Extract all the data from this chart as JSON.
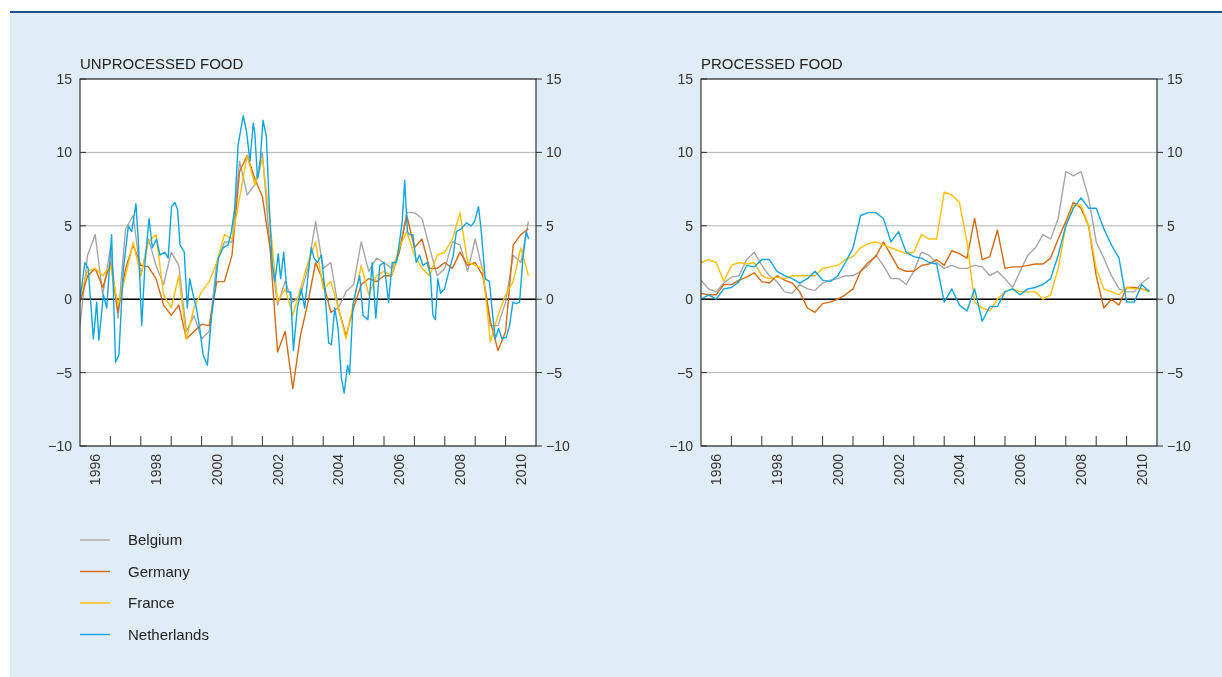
{
  "chart_data": [
    {
      "type": "line",
      "title": "UNPROCESSED FOOD",
      "xlim": [
        1996,
        2011
      ],
      "ylim": [
        -10,
        15
      ],
      "yticks": [
        -10,
        -5,
        0,
        5,
        10,
        15
      ],
      "y2lim": [
        -10,
        15
      ],
      "y2ticks": [
        -10,
        -5,
        0,
        5,
        10,
        15
      ],
      "xticks": [
        {
          "value": 1996.5,
          "label": "1996"
        },
        {
          "value": 1998.5,
          "label": "1998"
        },
        {
          "value": 2000.5,
          "label": "2000"
        },
        {
          "value": 2002.5,
          "label": "2002"
        },
        {
          "value": 2004.5,
          "label": "2004"
        },
        {
          "value": 2006.5,
          "label": "2006"
        },
        {
          "value": 2008.5,
          "label": "2008"
        },
        {
          "value": 2010.5,
          "label": "2010"
        },
        {
          "value": 1997,
          "label": null
        },
        {
          "value": 1998,
          "label": null
        },
        {
          "value": 1999,
          "label": null
        },
        {
          "value": 2000,
          "label": null
        },
        {
          "value": 2001,
          "label": null
        },
        {
          "value": 2002,
          "label": null
        },
        {
          "value": 2003,
          "label": null
        },
        {
          "value": 2004,
          "label": null
        },
        {
          "value": 2005,
          "label": null
        },
        {
          "value": 2006,
          "label": null
        },
        {
          "value": 2007,
          "label": null
        },
        {
          "value": 2008,
          "label": null
        },
        {
          "value": 2009,
          "label": null
        },
        {
          "value": 2010,
          "label": null
        }
      ],
      "grid": "y",
      "legend": "bottom",
      "line_style": "solid",
      "ref_lines": [
        {
          "axis": "y",
          "value": 0,
          "color": "#000000"
        }
      ],
      "x": [
        1996,
        1996.25,
        1996.5,
        1996.75,
        1997,
        1997.25,
        1997.5,
        1997.75,
        1998,
        1998.25,
        1998.5,
        1998.75,
        1999,
        1999.25,
        1999.5,
        1999.75,
        2000,
        2000.25,
        2000.5,
        2000.75,
        2001,
        2001.25,
        2001.5,
        2001.75,
        2002,
        2002.25,
        2002.5,
        2002.75,
        2003,
        2003.25,
        2003.5,
        2003.75,
        2004,
        2004.25,
        2004.5,
        2004.75,
        2005,
        2005.25,
        2005.5,
        2005.75,
        2006,
        2006.25,
        2006.5,
        2006.75,
        2007,
        2007.25,
        2007.5,
        2007.75,
        2008,
        2008.25,
        2008.5,
        2008.75,
        2009,
        2009.25,
        2009.5,
        2009.75,
        2010,
        2010.25,
        2010.5,
        2010.75
      ],
      "series": [
        {
          "name": "Belgium",
          "color": "#a6a6a6",
          "values": [
            -1.8,
            3.0,
            4.4,
            0.3,
            3.5,
            -1.3,
            4.8,
            5.7,
            1.6,
            4.1,
            2.3,
            1.0,
            3.2,
            2.3,
            -2.2,
            -1.1,
            -2.7,
            -2.2,
            2.5,
            3.9,
            3.9,
            9.4,
            7.1,
            7.8,
            10.0,
            3.5,
            -0.4,
            1.2,
            -0.2,
            0.3,
            2.1,
            5.3,
            2.1,
            2.5,
            -0.6,
            0.5,
            1.0,
            3.9,
            1.9,
            2.8,
            2.5,
            2.1,
            3.2,
            5.9,
            5.9,
            5.5,
            3.5,
            1.6,
            2.1,
            3.9,
            3.7,
            1.9,
            4.1,
            1.9,
            -1.8,
            -1.8,
            -0.2,
            3.0,
            2.5,
            5.3
          ]
        },
        {
          "name": "Germany",
          "color": "#d46a12",
          "values": [
            -0.2,
            1.6,
            2.1,
            0.8,
            2.5,
            -0.9,
            2.1,
            3.7,
            2.3,
            2.2,
            1.4,
            -0.4,
            -1.1,
            -0.4,
            -2.7,
            -2.2,
            -1.7,
            -1.8,
            1.2,
            1.2,
            3.0,
            8.7,
            9.8,
            8.2,
            7.0,
            3.5,
            -3.6,
            -2.2,
            -6.1,
            -2.5,
            -0.2,
            2.5,
            1.2,
            -0.9,
            -0.6,
            -2.5,
            -0.6,
            1.0,
            1.4,
            1.2,
            1.6,
            1.6,
            3.2,
            5.7,
            3.5,
            4.1,
            2.1,
            2.1,
            2.5,
            2.1,
            3.2,
            2.3,
            2.5,
            1.6,
            -1.5,
            -3.5,
            -2.2,
            3.7,
            4.4,
            4.8
          ]
        },
        {
          "name": "France",
          "color": "#ffc000",
          "values": [
            0.3,
            1.9,
            2.1,
            1.6,
            2.3,
            -0.4,
            1.6,
            3.9,
            1.6,
            3.9,
            4.4,
            0.3,
            -0.6,
            1.6,
            -2.7,
            -0.6,
            0.5,
            1.2,
            2.5,
            4.4,
            4.1,
            6.9,
            9.8,
            7.8,
            9.6,
            5.3,
            -0.2,
            0.7,
            -1.1,
            0.7,
            2.5,
            3.9,
            0.7,
            1.2,
            -0.6,
            -2.7,
            -0.2,
            2.3,
            0.3,
            1.6,
            1.9,
            1.6,
            3.5,
            4.6,
            3.0,
            2.1,
            1.6,
            3.0,
            3.2,
            4.1,
            5.9,
            2.5,
            2.3,
            2.1,
            -2.9,
            -1.1,
            0.3,
            1.2,
            3.5,
            1.6
          ]
        },
        {
          "name": "Netherlands",
          "color": "#0ea5e0",
          "x": [
            1996.0,
            1996.16,
            1996.27,
            1996.44,
            1996.55,
            1996.62,
            1996.77,
            1996.88,
            1997.04,
            1997.17,
            1997.28,
            1997.42,
            1997.59,
            1997.7,
            1997.84,
            1997.92,
            1998.03,
            1998.14,
            1998.27,
            1998.38,
            1998.52,
            1998.63,
            1998.79,
            1998.9,
            1999.01,
            1999.12,
            1999.21,
            1999.29,
            1999.43,
            1999.53,
            1999.61,
            1999.72,
            1999.83,
            1999.94,
            2000.05,
            2000.19,
            2000.33,
            2000.44,
            2000.55,
            2000.71,
            2000.87,
            2000.98,
            2001.09,
            2001.2,
            2001.37,
            2001.48,
            2001.59,
            2001.7,
            2001.75,
            2001.84,
            2001.91,
            2002.02,
            2002.13,
            2002.24,
            2002.32,
            2002.41,
            2002.52,
            2002.6,
            2002.7,
            2002.81,
            2002.93,
            2003.02,
            2003.15,
            2003.28,
            2003.39,
            2003.5,
            2003.61,
            2003.7,
            2003.81,
            2003.94,
            2004.05,
            2004.18,
            2004.27,
            2004.38,
            2004.49,
            2004.6,
            2004.69,
            2004.8,
            2004.87,
            2004.98,
            2005.09,
            2005.2,
            2005.31,
            2005.47,
            2005.61,
            2005.73,
            2005.86,
            2006.0,
            2006.15,
            2006.27,
            2006.41,
            2006.51,
            2006.6,
            2006.68,
            2006.77,
            2006.84,
            2006.95,
            2007.06,
            2007.17,
            2007.28,
            2007.42,
            2007.53,
            2007.61,
            2007.69,
            2007.77,
            2007.86,
            2007.99,
            2008.16,
            2008.27,
            2008.38,
            2008.54,
            2008.71,
            2008.87,
            2008.98,
            2009.11,
            2009.2,
            2009.33,
            2009.47,
            2009.55,
            2009.66,
            2009.77,
            2009.88,
            2010.02,
            2010.13,
            2010.24,
            2010.35,
            2010.46,
            2010.57,
            2010.68,
            2010.76
          ],
          "values": [
            0,
            2.5,
            2.1,
            -2.7,
            -0.2,
            -2.8,
            0.3,
            -0.6,
            4.4,
            -4.3,
            -3.8,
            1.9,
            5.0,
            4.6,
            6.5,
            3.9,
            -1.8,
            2.5,
            5.5,
            3.5,
            4.1,
            3.0,
            3.2,
            2.8,
            6.3,
            6.6,
            6.1,
            3.7,
            3.2,
            -0.6,
            1.4,
            0.3,
            -0.6,
            -2.0,
            -3.8,
            -4.5,
            -1.1,
            0.7,
            2.8,
            3.5,
            3.7,
            4.6,
            6.2,
            10.5,
            12.5,
            11.4,
            9.4,
            12.0,
            11.3,
            8.2,
            8.9,
            12.2,
            11.1,
            5.7,
            2.5,
            1.2,
            3.1,
            1.4,
            3.2,
            0.5,
            0.5,
            -3.5,
            -0.6,
            0.7,
            -0.6,
            1.6,
            3.5,
            2.8,
            2.5,
            3.0,
            0.7,
            -3.0,
            -3.1,
            -0.6,
            -2.0,
            -5.4,
            -6.4,
            -4.5,
            -5.1,
            -0.4,
            0.7,
            1.6,
            -1.1,
            -1.4,
            2.5,
            -1.3,
            2.3,
            2.5,
            -0.2,
            2.5,
            2.5,
            3.9,
            5.3,
            8.1,
            4.6,
            4.4,
            4.4,
            2.5,
            3.0,
            2.3,
            2.5,
            1.6,
            -1.1,
            -1.4,
            1.4,
            0.4,
            0.7,
            2.1,
            2.9,
            4.6,
            4.8,
            5.2,
            5.0,
            5.3,
            6.3,
            4.6,
            1.4,
            1.2,
            -0.6,
            -2.7,
            -2.0,
            -2.7,
            -2.6,
            -1.8,
            -0.2,
            -0.3,
            -0.2,
            2.8,
            4.6,
            4.1
          ]
        }
      ]
    },
    {
      "type": "line",
      "title": "PROCESSED FOOD",
      "xlim": [
        1996,
        2011
      ],
      "ylim": [
        -10,
        15
      ],
      "yticks": [
        -10,
        -5,
        0,
        5,
        10,
        15
      ],
      "y2lim": [
        -10,
        15
      ],
      "y2ticks": [
        -10,
        -5,
        0,
        5,
        10,
        15
      ],
      "xticks": [
        {
          "value": 1996.5,
          "label": "1996"
        },
        {
          "value": 1998.5,
          "label": "1998"
        },
        {
          "value": 2000.5,
          "label": "2000"
        },
        {
          "value": 2002.5,
          "label": "2002"
        },
        {
          "value": 2004.5,
          "label": "2004"
        },
        {
          "value": 2006.5,
          "label": "2006"
        },
        {
          "value": 2008.5,
          "label": "2008"
        },
        {
          "value": 2010.5,
          "label": "2010"
        },
        {
          "value": 1997,
          "label": null
        },
        {
          "value": 1998,
          "label": null
        },
        {
          "value": 1999,
          "label": null
        },
        {
          "value": 2000,
          "label": null
        },
        {
          "value": 2001,
          "label": null
        },
        {
          "value": 2002,
          "label": null
        },
        {
          "value": 2003,
          "label": null
        },
        {
          "value": 2004,
          "label": null
        },
        {
          "value": 2005,
          "label": null
        },
        {
          "value": 2006,
          "label": null
        },
        {
          "value": 2007,
          "label": null
        },
        {
          "value": 2008,
          "label": null
        },
        {
          "value": 2009,
          "label": null
        },
        {
          "value": 2010,
          "label": null
        }
      ],
      "grid": "y",
      "line_style": "solid",
      "ref_lines": [
        {
          "axis": "y",
          "value": 0,
          "color": "#000000"
        }
      ],
      "x": [
        1996,
        1996.25,
        1996.5,
        1996.75,
        1997,
        1997.25,
        1997.5,
        1997.75,
        1998,
        1998.25,
        1998.5,
        1998.75,
        1999,
        1999.25,
        1999.5,
        1999.75,
        2000,
        2000.25,
        2000.5,
        2000.75,
        2001,
        2001.25,
        2001.5,
        2001.75,
        2002,
        2002.25,
        2002.5,
        2002.75,
        2003,
        2003.25,
        2003.5,
        2003.75,
        2004,
        2004.25,
        2004.5,
        2004.75,
        2005,
        2005.25,
        2005.5,
        2005.75,
        2006,
        2006.25,
        2006.5,
        2006.75,
        2007,
        2007.25,
        2007.5,
        2007.75,
        2008,
        2008.25,
        2008.5,
        2008.75,
        2009,
        2009.25,
        2009.5,
        2009.75,
        2010,
        2010.25,
        2010.5,
        2010.75
      ],
      "series": [
        {
          "color": "#a6a6a6",
          "values": [
            1.3,
            0.7,
            0.5,
            1.1,
            1.5,
            1.6,
            2.7,
            3.2,
            2.3,
            1.6,
            1.2,
            0.5,
            0.4,
            1.0,
            0.7,
            0.6,
            1.1,
            1.3,
            1.4,
            1.6,
            1.6,
            1.9,
            2.3,
            3.0,
            2.3,
            1.4,
            1.4,
            1.0,
            1.9,
            3.2,
            3.0,
            2.5,
            2.1,
            2.3,
            2.1,
            2.1,
            2.3,
            2.2,
            1.6,
            1.9,
            1.4,
            0.8,
            1.9,
            3.0,
            3.5,
            4.4,
            4.1,
            5.5,
            8.7,
            8.4,
            8.7,
            6.9,
            3.9,
            2.8,
            1.6,
            0.7,
            0.5,
            0.5,
            1.1,
            1.5
          ]
        },
        {
          "color": "#d46a12",
          "values": [
            0.4,
            0.3,
            0.3,
            1.0,
            1.0,
            1.3,
            1.5,
            1.8,
            1.2,
            1.1,
            1.6,
            1.3,
            1.1,
            0.5,
            -0.6,
            -0.9,
            -0.3,
            -0.2,
            0.0,
            0.3,
            0.7,
            1.9,
            2.5,
            2.9,
            3.9,
            3.0,
            2.1,
            1.9,
            1.9,
            2.3,
            2.4,
            2.7,
            2.3,
            3.3,
            3.1,
            2.8,
            5.5,
            2.7,
            2.9,
            4.7,
            2.1,
            2.2,
            2.2,
            2.3,
            2.4,
            2.4,
            2.8,
            4.1,
            5.3,
            6.6,
            6.2,
            5.0,
            1.6,
            -0.6,
            0.0,
            -0.4,
            0.8,
            0.8,
            0.7,
            0.6
          ]
        },
        {
          "color": "#ffc000",
          "values": [
            2.5,
            2.7,
            2.5,
            1.2,
            2.3,
            2.5,
            2.4,
            2.5,
            1.6,
            1.4,
            1.5,
            1.4,
            1.6,
            1.6,
            1.6,
            1.6,
            2.1,
            2.2,
            2.3,
            2.7,
            2.9,
            3.5,
            3.8,
            3.9,
            3.7,
            3.5,
            3.3,
            3.1,
            3.2,
            4.4,
            4.1,
            4.1,
            7.3,
            7.1,
            6.6,
            3.9,
            -0.2,
            -0.6,
            -0.8,
            0.0,
            0.5,
            0.7,
            0.5,
            0.5,
            0.5,
            0.0,
            0.3,
            2.1,
            5.0,
            6.4,
            6.4,
            5.0,
            2.1,
            0.7,
            0.5,
            0.3,
            0.8,
            0.7,
            0.7,
            0.5
          ]
        },
        {
          "color": "#0ea5e0",
          "values": [
            0.0,
            0.3,
            0.0,
            0.7,
            0.8,
            1.2,
            2.3,
            2.2,
            2.7,
            2.7,
            1.9,
            1.6,
            1.4,
            1.1,
            1.4,
            1.9,
            1.3,
            1.2,
            1.6,
            2.5,
            3.5,
            5.7,
            5.9,
            5.9,
            5.5,
            3.9,
            4.6,
            3.2,
            2.9,
            2.8,
            2.5,
            2.4,
            -0.2,
            0.7,
            -0.4,
            -0.8,
            0.7,
            -1.5,
            -0.5,
            -0.5,
            0.5,
            0.7,
            0.3,
            0.7,
            0.8,
            1.0,
            1.4,
            3.0,
            5.0,
            6.2,
            6.9,
            6.2,
            6.2,
            4.8,
            3.7,
            2.8,
            -0.2,
            -0.2,
            1.0,
            0.5
          ]
        }
      ]
    }
  ]
}
